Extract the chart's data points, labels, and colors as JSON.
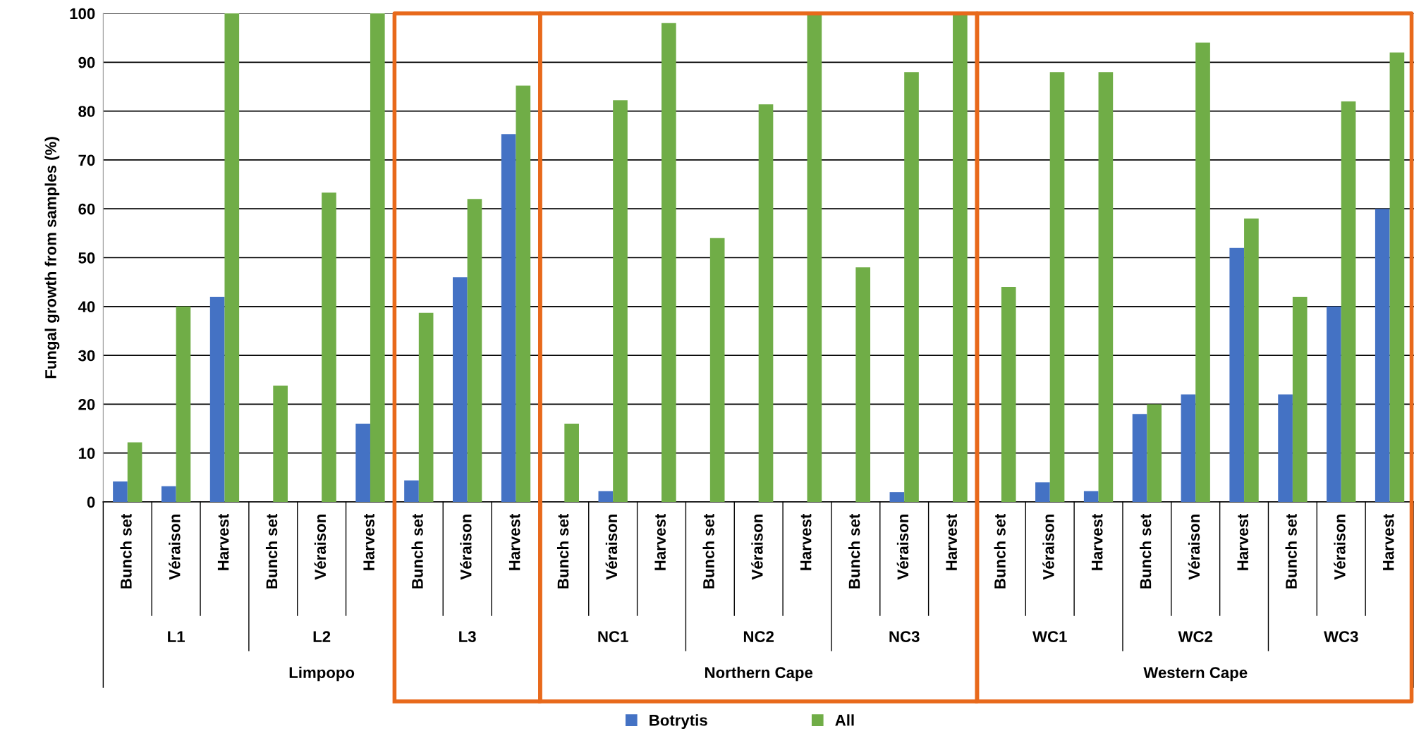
{
  "chart_data": {
    "type": "bar",
    "ylabel": "Fungal growth from samples (%)",
    "categories": [
      "Bunch set",
      "Véraison",
      "Harvest",
      "Bunch set",
      "Véraison",
      "Harvest",
      "Bunch set",
      "Véraison",
      "Harvest",
      "Bunch set",
      "Véraison",
      "Harvest",
      "Bunch set",
      "Véraison",
      "Harvest",
      "Bunch set",
      "Véraison",
      "Harvest",
      "Bunch set",
      "Véraison",
      "Harvest",
      "Bunch set",
      "Véraison",
      "Harvest",
      "Bunch set",
      "Véraison",
      "Harvest"
    ],
    "series": [
      {
        "name": "Botrytis",
        "color": "#4472c4",
        "values": [
          4.2,
          3.2,
          42,
          0,
          0,
          16,
          4.4,
          46,
          75.3,
          0,
          2.2,
          0,
          0,
          0,
          0,
          0,
          2,
          0,
          0,
          4,
          2.2,
          18,
          22,
          52,
          22,
          40,
          60
        ]
      },
      {
        "name": "All",
        "color": "#70ad47",
        "values": [
          12.2,
          40,
          100,
          23.8,
          63.3,
          100,
          38.7,
          62,
          85.2,
          16,
          82.2,
          98,
          54,
          81.4,
          100,
          48,
          88,
          100,
          44,
          88,
          88,
          20,
          94,
          58,
          42,
          82,
          92
        ]
      }
    ],
    "ylim": [
      0,
      100
    ],
    "yticks": [
      0,
      10,
      20,
      30,
      40,
      50,
      60,
      70,
      80,
      90,
      100
    ],
    "grid": "y",
    "legend": "bottom",
    "annotations": [
      "L1",
      "L2",
      "L3",
      "NC1",
      "NC2",
      "NC3",
      "WC1",
      "WC2",
      "WC3",
      "Limpopo",
      "Northern Cape",
      "Western Cape"
    ]
  }
}
